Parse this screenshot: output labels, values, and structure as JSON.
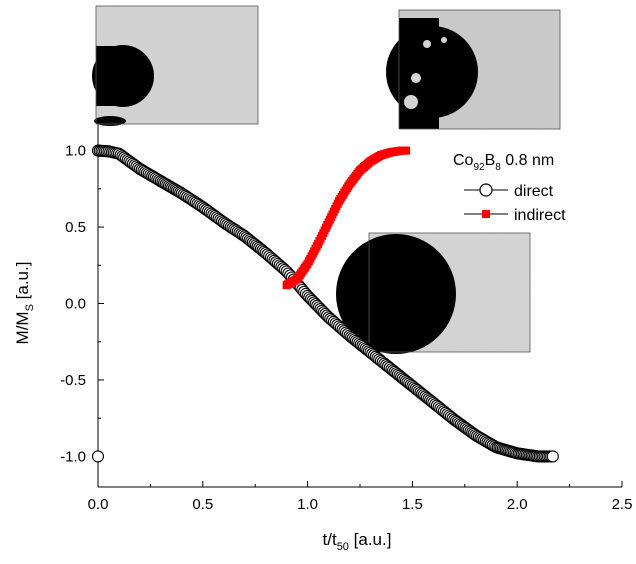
{
  "chart_data": {
    "type": "scatter",
    "xlabel": "t/t",
    "xlabel_sub": "50",
    "xlabel_unit": " [a.u.]",
    "ylabel": "M/M",
    "ylabel_sub": "S",
    "ylabel_unit": " [a.u.]",
    "xlim": [
      0,
      2.5
    ],
    "ylim": [
      -1.2,
      1.2
    ],
    "xticks": [
      "0.0",
      "0.5",
      "1.0",
      "1.5",
      "2.0",
      "2.5"
    ],
    "yticks": [
      "-1.0",
      "-0.5",
      "0.0",
      "0.5",
      "1.0"
    ],
    "grid": false,
    "legend": {
      "placement": "right, middle-top",
      "title_main": "Co",
      "title_sub1": "92",
      "title_mid": "B",
      "title_sub2": "8",
      "title_end": " 0.8 nm"
    },
    "series": [
      {
        "name": "direct",
        "color": "#000000",
        "marker": "open-circle",
        "x": [
          0.0,
          0.05,
          0.1,
          0.15,
          0.2,
          0.3,
          0.4,
          0.5,
          0.6,
          0.7,
          0.8,
          0.9,
          1.0,
          1.1,
          1.2,
          1.3,
          1.4,
          1.5,
          1.6,
          1.7,
          1.8,
          1.9,
          2.0,
          2.1,
          2.17
        ],
        "y": [
          1.0,
          0.995,
          0.98,
          0.93,
          0.88,
          0.8,
          0.72,
          0.63,
          0.53,
          0.44,
          0.33,
          0.21,
          0.05,
          -0.09,
          -0.21,
          -0.32,
          -0.43,
          -0.54,
          -0.65,
          -0.76,
          -0.86,
          -0.94,
          -0.98,
          -1.0,
          -1.0
        ]
      },
      {
        "name": "indirect",
        "color": "#ff0000",
        "marker": "filled-square",
        "x": [
          0.9,
          0.95,
          1.0,
          1.05,
          1.1,
          1.15,
          1.2,
          1.25,
          1.3,
          1.35,
          1.4,
          1.45,
          1.47
        ],
        "y": [
          0.12,
          0.16,
          0.26,
          0.39,
          0.53,
          0.67,
          0.78,
          0.87,
          0.93,
          0.97,
          0.99,
          1.0,
          1.0
        ]
      }
    ],
    "isolated_points": [
      {
        "x": 0.0,
        "y": -1.0,
        "marker": "open-circle"
      }
    ],
    "insets": [
      {
        "name": "inset-initial-domain",
        "description": "MOKE image: small black circular domain at left, partial domain bottom-left"
      },
      {
        "name": "inset-indirect-domain",
        "description": "MOKE image: large black circular domain with small islands"
      },
      {
        "name": "inset-direct-domain",
        "description": "MOKE image: large black domain occupying left half"
      }
    ]
  }
}
